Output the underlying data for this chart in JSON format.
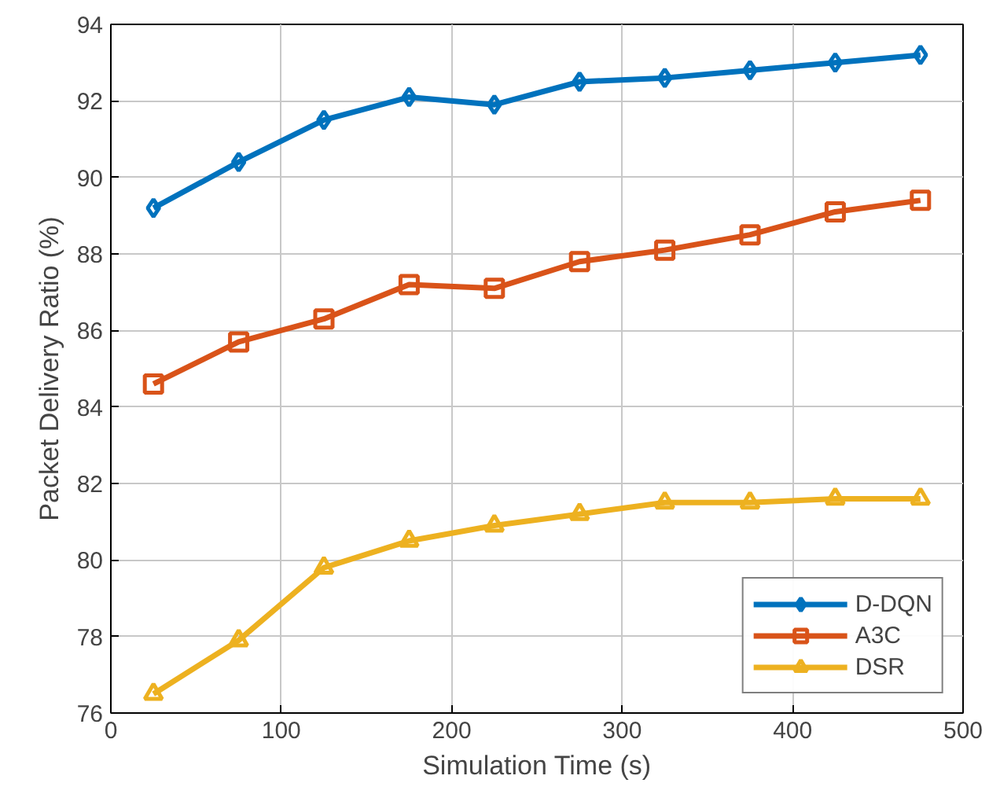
{
  "chart_data": {
    "type": "line",
    "xlabel": "Simulation Time (s)",
    "ylabel": "Packet Delivery Ratio (%)",
    "x": [
      25,
      75,
      125,
      175,
      225,
      275,
      325,
      375,
      425,
      475
    ],
    "series": [
      {
        "name": "D-DQN",
        "color": "#0072bd",
        "marker": "diamond",
        "values": [
          89.2,
          90.4,
          91.5,
          92.1,
          91.9,
          92.5,
          92.6,
          92.8,
          93.0,
          93.2
        ]
      },
      {
        "name": "A3C",
        "color": "#d95319",
        "marker": "square",
        "values": [
          84.6,
          85.7,
          86.3,
          87.2,
          87.1,
          87.8,
          88.1,
          88.5,
          89.1,
          89.4
        ]
      },
      {
        "name": "DSR",
        "color": "#edb120",
        "marker": "triangle",
        "values": [
          76.5,
          77.9,
          79.8,
          80.5,
          80.9,
          81.2,
          81.5,
          81.5,
          81.6,
          81.6
        ]
      }
    ],
    "xlim": [
      0,
      500
    ],
    "xticks": [
      0,
      100,
      200,
      300,
      400,
      500
    ],
    "ylim": [
      76,
      94
    ],
    "yticks": [
      76,
      78,
      80,
      82,
      84,
      86,
      88,
      90,
      92,
      94
    ],
    "grid": true,
    "legend": "bottom right",
    "line_style": "solid"
  }
}
